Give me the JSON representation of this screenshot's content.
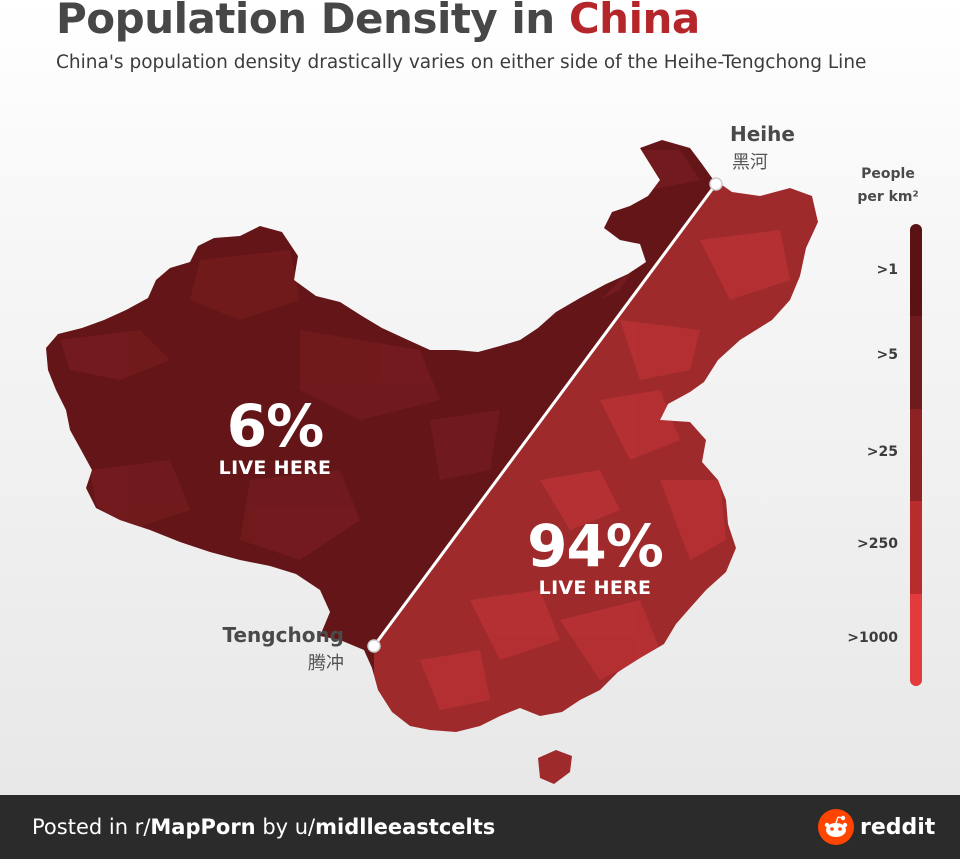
{
  "header": {
    "title_main": "Population Density in ",
    "title_accent": "China",
    "subtitle": "China's population density drastically varies on either side of the Heihe-Tengchong Line"
  },
  "cities": {
    "heihe": {
      "name": "Heihe",
      "name_zh": "黑河"
    },
    "tengchong": {
      "name": "Tengchong",
      "name_zh": "腾冲"
    }
  },
  "stats": {
    "west": {
      "percent": "6%",
      "caption": "LIVE HERE"
    },
    "east": {
      "percent": "94%",
      "caption": "LIVE HERE"
    }
  },
  "legend": {
    "title_line1": "People",
    "title_line2": "per km²",
    "items": [
      {
        "label": ">1",
        "color": "#5a1214"
      },
      {
        "label": ">5",
        "color": "#6f1a1c"
      },
      {
        "label": ">25",
        "color": "#8c2224"
      },
      {
        "label": ">250",
        "color": "#b92c2e"
      },
      {
        "label": ">1000",
        "color": "#e33a3d"
      }
    ]
  },
  "map": {
    "west_color": "#641517",
    "west_light_color": "#7d1f22",
    "east_color": "#9e2a2c",
    "east_light_color": "#c43537",
    "line_color": "#ffffff"
  },
  "footer": {
    "prefix": "Posted in r/",
    "subreddit": "MapPorn",
    "middle": " by u/",
    "user": "midlleeastcelts",
    "brand": "reddit",
    "brand_color": "#ff4500"
  }
}
